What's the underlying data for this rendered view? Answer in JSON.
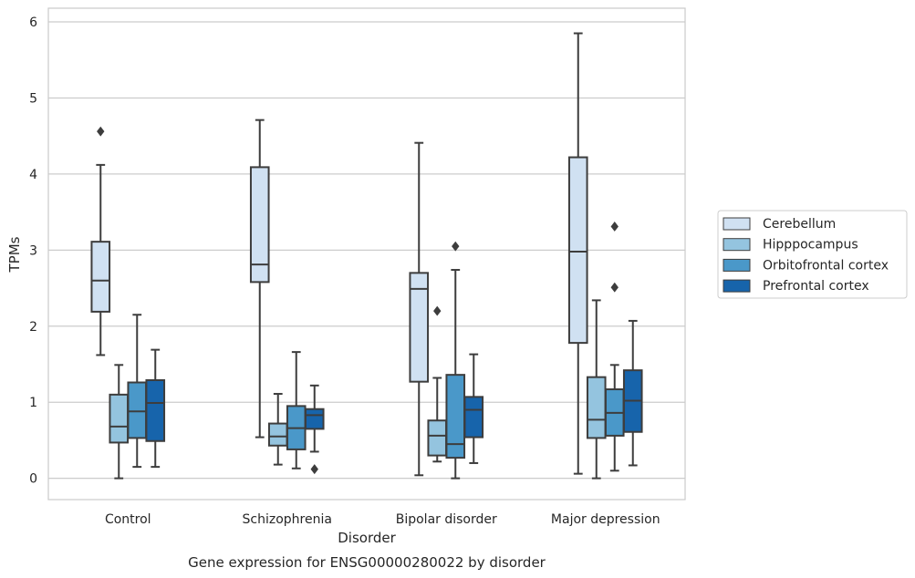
{
  "chart_data": {
    "type": "box",
    "title": "",
    "caption": "Gene expression for ENSG00000280022 by disorder",
    "xlabel": "Disorder",
    "ylabel": "TPMs",
    "ylim": [
      -0.28,
      6.18
    ],
    "yticks": [
      0,
      1,
      2,
      3,
      4,
      5,
      6
    ],
    "grid": "horizontal",
    "legend_position": "right",
    "categories": [
      "Control",
      "Schizophrenia",
      "Bipolar disorder",
      "Major depression"
    ],
    "series": [
      {
        "name": "Cerebellum",
        "color": "#d0e1f2",
        "boxes": [
          {
            "whisker_low": 1.62,
            "q1": 2.19,
            "median": 2.6,
            "q3": 3.11,
            "whisker_high": 4.12,
            "outliers": [
              4.56
            ]
          },
          {
            "whisker_low": 0.54,
            "q1": 2.58,
            "median": 2.81,
            "q3": 4.09,
            "whisker_high": 4.71,
            "outliers": []
          },
          {
            "whisker_low": 0.04,
            "q1": 1.27,
            "median": 2.49,
            "q3": 2.7,
            "whisker_high": 4.41,
            "outliers": []
          },
          {
            "whisker_low": 0.06,
            "q1": 1.78,
            "median": 2.98,
            "q3": 4.22,
            "whisker_high": 5.85,
            "outliers": []
          }
        ]
      },
      {
        "name": "Hipppocampus",
        "color": "#94c4df",
        "boxes": [
          {
            "whisker_low": 0.0,
            "q1": 0.47,
            "median": 0.68,
            "q3": 1.1,
            "whisker_high": 1.49,
            "outliers": []
          },
          {
            "whisker_low": 0.18,
            "q1": 0.43,
            "median": 0.55,
            "q3": 0.72,
            "whisker_high": 1.11,
            "outliers": []
          },
          {
            "whisker_low": 0.22,
            "q1": 0.3,
            "median": 0.56,
            "q3": 0.76,
            "whisker_high": 1.32,
            "outliers": [
              2.2
            ]
          },
          {
            "whisker_low": 0.0,
            "q1": 0.53,
            "median": 0.77,
            "q3": 1.33,
            "whisker_high": 2.34,
            "outliers": []
          }
        ]
      },
      {
        "name": "Orbitofrontal cortex",
        "color": "#4a98c9",
        "boxes": [
          {
            "whisker_low": 0.15,
            "q1": 0.53,
            "median": 0.88,
            "q3": 1.26,
            "whisker_high": 2.15,
            "outliers": []
          },
          {
            "whisker_low": 0.13,
            "q1": 0.38,
            "median": 0.66,
            "q3": 0.95,
            "whisker_high": 1.66,
            "outliers": []
          },
          {
            "whisker_low": 0.0,
            "q1": 0.27,
            "median": 0.45,
            "q3": 1.36,
            "whisker_high": 2.74,
            "outliers": [
              3.05
            ]
          },
          {
            "whisker_low": 0.1,
            "q1": 0.56,
            "median": 0.86,
            "q3": 1.17,
            "whisker_high": 1.49,
            "outliers": [
              2.51,
              3.31
            ]
          }
        ]
      },
      {
        "name": "Prefrontal cortex",
        "color": "#1764ab",
        "boxes": [
          {
            "whisker_low": 0.15,
            "q1": 0.49,
            "median": 0.99,
            "q3": 1.29,
            "whisker_high": 1.69,
            "outliers": []
          },
          {
            "whisker_low": 0.35,
            "q1": 0.65,
            "median": 0.83,
            "q3": 0.91,
            "whisker_high": 1.22,
            "outliers": [
              0.12
            ]
          },
          {
            "whisker_low": 0.2,
            "q1": 0.54,
            "median": 0.9,
            "q3": 1.07,
            "whisker_high": 1.63,
            "outliers": []
          },
          {
            "whisker_low": 0.17,
            "q1": 0.61,
            "median": 1.02,
            "q3": 1.42,
            "whisker_high": 2.07,
            "outliers": []
          }
        ]
      }
    ]
  }
}
